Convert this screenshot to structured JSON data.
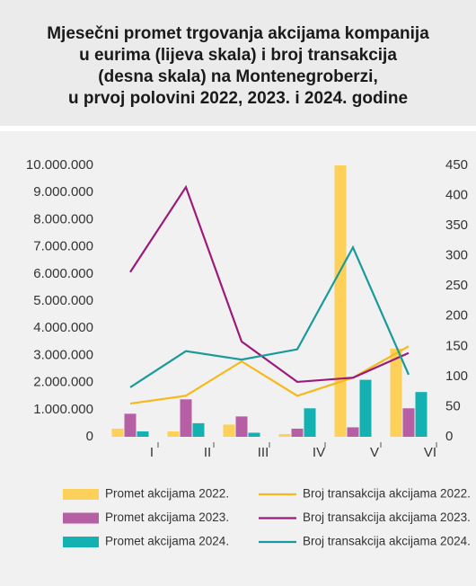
{
  "chart_data": {
    "type": "combo",
    "title": [
      "Mjesečni promet trgovanja akcijama kompanija",
      "u eurima (lijeva skala) i broj transakcija",
      "(desna skala) na Montenegroberzi,",
      "u prvoj polovini 2022, 2023. i 2024. godine"
    ],
    "categories": [
      "I",
      "II",
      "III",
      "IV",
      "V",
      "VI"
    ],
    "ylim": [
      0,
      10000000
    ],
    "yticks": [
      0,
      {
        "value": 1000000,
        "label": "1.000.000"
      },
      {
        "value": 2000000,
        "label": "2.000.000"
      },
      {
        "value": 3000000,
        "label": "3.000.000"
      },
      {
        "value": 4000000,
        "label": "4.000.000"
      },
      {
        "value": 5000000,
        "label": "5.000.000"
      },
      {
        "value": 6000000,
        "label": "6.000.000"
      },
      {
        "value": 7000000,
        "label": "7.000.000"
      },
      {
        "value": 8000000,
        "label": "8.000.000"
      },
      {
        "value": 9000000,
        "label": "9.000.000"
      },
      {
        "value": 10000000,
        "label": "10.000.000"
      }
    ],
    "y2lim": [
      0,
      450
    ],
    "y2ticks": [
      0,
      50,
      100,
      150,
      200,
      250,
      300,
      350,
      400,
      450
    ],
    "series": [
      {
        "name": "Promet akcijama 2022.",
        "type": "bar",
        "color": "#fdd05a",
        "values": [
          300000,
          200000,
          450000,
          100000,
          10000000,
          3250000
        ]
      },
      {
        "name": "Promet akcijama 2023.",
        "type": "bar",
        "color": "#b65fa5",
        "values": [
          850000,
          1380000,
          750000,
          300000,
          350000,
          1050000
        ]
      },
      {
        "name": "Promet akcijama 2024.",
        "type": "bar",
        "color": "#13b1b1",
        "values": [
          200000,
          500000,
          150000,
          1050000,
          2100000,
          1650000
        ]
      },
      {
        "name": "Broj transakcija akcijama 2022.",
        "type": "line",
        "axis": "y2",
        "color": "#f7b91a",
        "values": [
          55,
          68,
          125,
          68,
          98,
          150
        ]
      },
      {
        "name": "Broj transakcija akcijama 2023.",
        "type": "line",
        "axis": "y2",
        "color": "#9c1b7a",
        "values": [
          273,
          414,
          158,
          91,
          98,
          139
        ]
      },
      {
        "name": "Broj transakcija akcijama 2024.",
        "type": "line",
        "axis": "y2",
        "color": "#1a9a9a",
        "values": [
          82,
          142,
          128,
          145,
          314,
          103
        ]
      }
    ]
  }
}
